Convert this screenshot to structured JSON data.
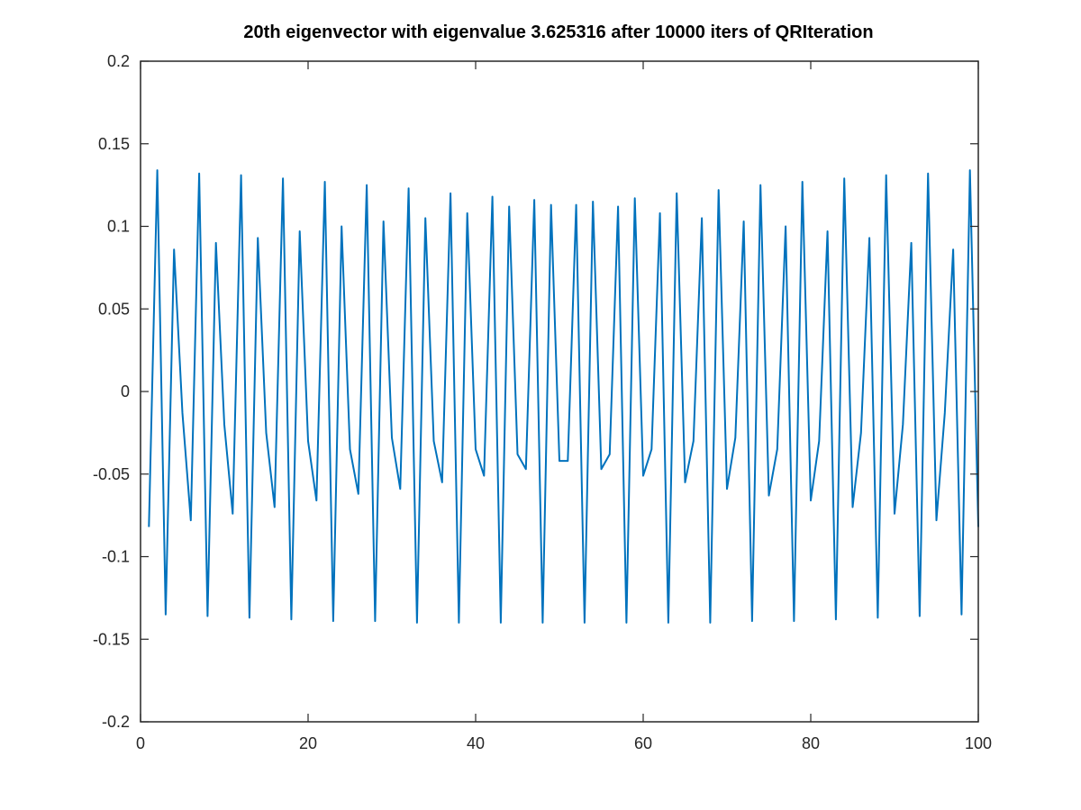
{
  "chart_data": {
    "type": "line",
    "title": "20th eigenvector with eigenvalue 3.625316 after 10000 iters of QRIteration",
    "xlabel": "",
    "ylabel": "",
    "xlim": [
      0,
      100
    ],
    "ylim": [
      -0.2,
      0.2
    ],
    "xticks": [
      0,
      20,
      40,
      60,
      80,
      100
    ],
    "xtick_labels": [
      "0",
      "20",
      "40",
      "60",
      "80",
      "100"
    ],
    "yticks": [
      -0.2,
      -0.15,
      -0.1,
      -0.05,
      0,
      0.05,
      0.1,
      0.15,
      0.2
    ],
    "ytick_labels": [
      "-0.2",
      "-0.15",
      "-0.1",
      "-0.05",
      "0",
      "0.05",
      "0.1",
      "0.15",
      "0.2"
    ],
    "grid": false,
    "series": [
      {
        "name": "eigenvector",
        "color": "#0072BD",
        "x": [
          1,
          2,
          3,
          4,
          5,
          6,
          7,
          8,
          9,
          10,
          11,
          12,
          13,
          14,
          15,
          16,
          17,
          18,
          19,
          20,
          21,
          22,
          23,
          24,
          25,
          26,
          27,
          28,
          29,
          30,
          31,
          32,
          33,
          34,
          35,
          36,
          37,
          38,
          39,
          40,
          41,
          42,
          43,
          44,
          45,
          46,
          47,
          48,
          49,
          50,
          51,
          52,
          53,
          54,
          55,
          56,
          57,
          58,
          59,
          60,
          61,
          62,
          63,
          64,
          65,
          66,
          67,
          68,
          69,
          70,
          71,
          72,
          73,
          74,
          75,
          76,
          77,
          78,
          79,
          80,
          81,
          82,
          83,
          84,
          85,
          86,
          87,
          88,
          89,
          90,
          91,
          92,
          93,
          94,
          95,
          96,
          97,
          98,
          99,
          100
        ],
        "values": [
          -0.082,
          0.134,
          -0.135,
          0.086,
          -0.013,
          -0.078,
          0.132,
          -0.136,
          0.09,
          -0.02,
          -0.074,
          0.131,
          -0.137,
          0.093,
          -0.025,
          -0.07,
          0.129,
          -0.138,
          0.097,
          -0.03,
          -0.066,
          0.127,
          -0.139,
          0.1,
          -0.035,
          -0.062,
          0.125,
          -0.139,
          0.103,
          -0.028,
          -0.059,
          0.123,
          -0.14,
          0.105,
          -0.03,
          -0.055,
          0.12,
          -0.14,
          0.108,
          -0.035,
          -0.051,
          0.118,
          -0.14,
          0.112,
          -0.038,
          -0.047,
          0.116,
          -0.14,
          0.113,
          -0.042,
          -0.042,
          0.113,
          -0.14,
          0.115,
          -0.047,
          -0.038,
          0.112,
          -0.14,
          0.117,
          -0.051,
          -0.035,
          0.108,
          -0.14,
          0.12,
          -0.055,
          -0.03,
          0.105,
          -0.14,
          0.122,
          -0.059,
          -0.028,
          0.103,
          -0.139,
          0.125,
          -0.063,
          -0.035,
          0.1,
          -0.139,
          0.127,
          -0.066,
          -0.03,
          0.097,
          -0.138,
          0.129,
          -0.07,
          -0.025,
          0.093,
          -0.137,
          0.131,
          -0.074,
          -0.02,
          0.09,
          -0.136,
          0.132,
          -0.078,
          -0.013,
          0.086,
          -0.135,
          0.134,
          -0.082
        ]
      }
    ]
  }
}
